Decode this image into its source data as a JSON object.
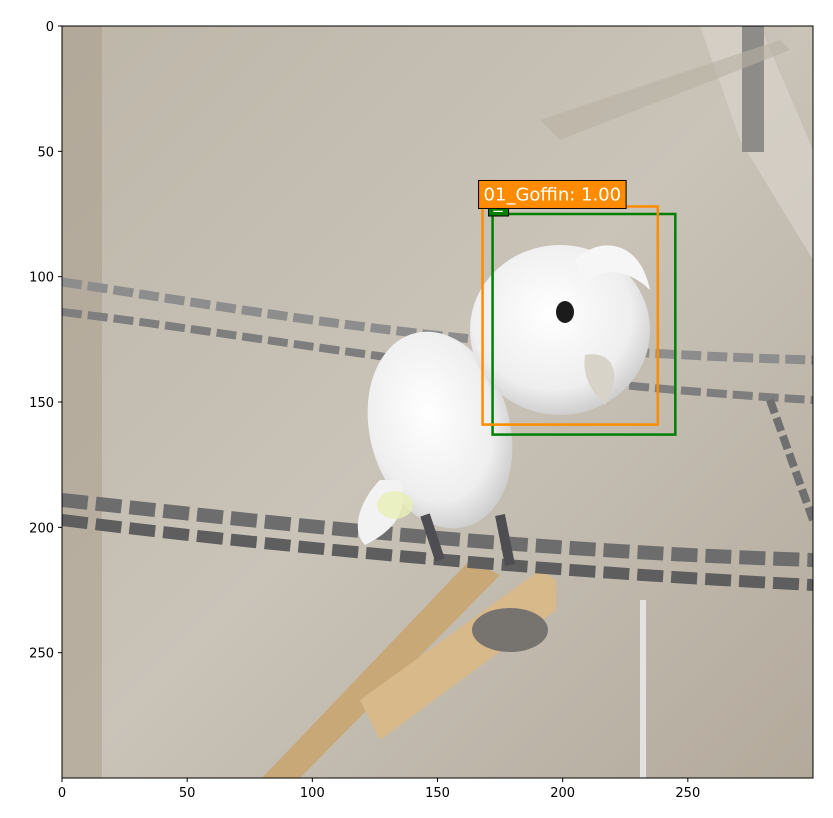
{
  "chart_data": {
    "type": "image",
    "title": "",
    "xlabel": "",
    "ylabel": "",
    "xlim": [
      0,
      300
    ],
    "ylim": [
      300,
      0
    ],
    "x_ticks": [
      0,
      50,
      100,
      150,
      200,
      250
    ],
    "y_ticks": [
      0,
      50,
      100,
      150,
      200,
      250
    ],
    "grid": false,
    "image_content": "white cockatoo perched on chains",
    "detections": [
      {
        "kind": "ground-truth",
        "label": "_",
        "color": "#008000",
        "x0": 172,
        "y0": 75,
        "x1": 245,
        "y1": 163
      },
      {
        "kind": "prediction",
        "label": "01_Goffin: 1.00",
        "color": "#ff8c00",
        "x0": 168,
        "y0": 72,
        "x1": 238,
        "y1": 159
      }
    ]
  }
}
